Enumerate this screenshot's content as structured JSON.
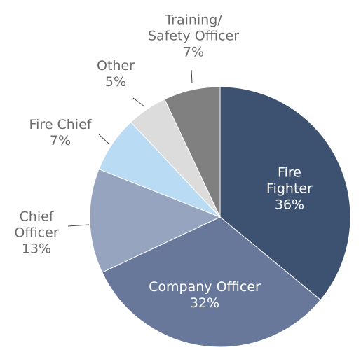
{
  "chart_data": {
    "type": "pie",
    "categories": [
      "Fire Fighter",
      "Company Officer",
      "Chief\nOfficer",
      "Fire Chief",
      "Other",
      "Training/\nSafety Officer"
    ],
    "values": [
      36,
      32,
      13,
      7,
      5,
      7
    ],
    "value_labels": [
      "36%",
      "32%",
      "13%",
      "7%",
      "5%",
      "7%"
    ],
    "colors": [
      "#3d5170",
      "#67789a",
      "#97a4bf",
      "#b9dcf4",
      "#dcdcdc",
      "#808080"
    ]
  }
}
